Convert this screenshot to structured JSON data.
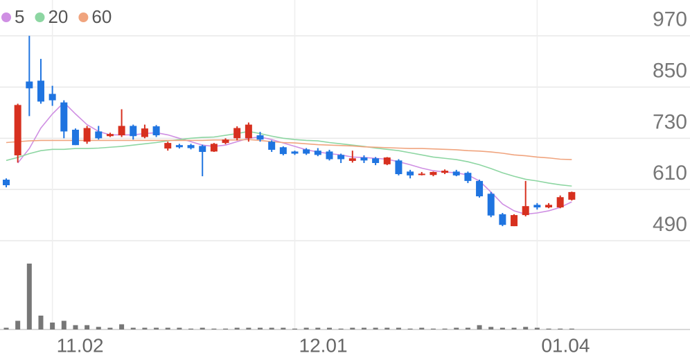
{
  "chart_data": {
    "type": "candlestick",
    "categories": [
      null,
      null,
      null,
      null,
      "11.02",
      null,
      null,
      null,
      null,
      null,
      null,
      null,
      null,
      null,
      null,
      null,
      null,
      null,
      null,
      null,
      null,
      null,
      null,
      null,
      null,
      "12.01",
      null,
      null,
      null,
      null,
      null,
      null,
      null,
      null,
      null,
      null,
      null,
      null,
      null,
      null,
      null,
      null,
      null,
      null,
      null,
      null,
      "01.04",
      null,
      null,
      null
    ],
    "open": [
      633,
      690,
      863,
      865,
      834,
      814,
      750,
      722,
      746,
      735,
      737,
      759,
      733,
      758,
      706,
      714,
      714,
      712,
      699,
      719,
      730,
      730,
      737,
      722,
      709,
      699,
      704,
      701,
      699,
      691,
      677,
      685,
      683,
      669,
      678,
      652,
      644,
      644,
      649,
      652,
      649,
      630,
      600,
      552,
      524,
      550,
      574,
      568,
      568,
      586
    ],
    "high": [
      636,
      811,
      970,
      916,
      853,
      819,
      753,
      759,
      759,
      743,
      798,
      762,
      762,
      761,
      722,
      717,
      717,
      715,
      719,
      730,
      758,
      767,
      745,
      725,
      711,
      701,
      707,
      707,
      703,
      694,
      701,
      690,
      686,
      686,
      681,
      656,
      651,
      652,
      657,
      656,
      652,
      633,
      604,
      555,
      552,
      630,
      578,
      578,
      596,
      605
    ],
    "low": [
      615,
      673,
      782,
      811,
      806,
      730,
      714,
      717,
      727,
      733,
      733,
      727,
      730,
      733,
      701,
      706,
      704,
      641,
      698,
      716,
      725,
      722,
      722,
      698,
      690,
      691,
      691,
      688,
      678,
      672,
      673,
      672,
      667,
      667,
      643,
      636,
      643,
      641,
      646,
      641,
      625,
      591,
      545,
      524,
      524,
      547,
      563,
      566,
      566,
      584
    ],
    "close": [
      620,
      808,
      847,
      816,
      819,
      746,
      714,
      754,
      730,
      740,
      759,
      735,
      753,
      737,
      719,
      709,
      707,
      698,
      717,
      727,
      754,
      762,
      727,
      703,
      693,
      694,
      694,
      691,
      681,
      681,
      683,
      678,
      672,
      685,
      646,
      643,
      647,
      651,
      654,
      643,
      630,
      594,
      549,
      527,
      550,
      571,
      568,
      574,
      592,
      604
    ],
    "up_color": "#d7301f",
    "down_color": "#1f74e0",
    "ylim": [
      490,
      1054
    ],
    "yticks": [
      970,
      850,
      730,
      610,
      490
    ],
    "grid": true,
    "series": [
      {
        "name": "5",
        "color": "#cf8fe3",
        "values": [
          null,
          672,
          706,
          754,
          787,
          814,
          787,
          762,
          746,
          738,
          738,
          738,
          741,
          743,
          738,
          730,
          722,
          714,
          711,
          714,
          722,
          730,
          733,
          727,
          719,
          711,
          703,
          698,
          694,
          691,
          686,
          685,
          683,
          681,
          675,
          668,
          660,
          654,
          651,
          649,
          644,
          630,
          604,
          576,
          560,
          552,
          555,
          560,
          568,
          581
        ]
      },
      {
        "name": "20",
        "color": "#8dd6a2",
        "values": [
          678,
          685,
          694,
          701,
          704,
          704,
          706,
          706,
          707,
          709,
          711,
          714,
          717,
          720,
          724,
          727,
          730,
          732,
          733,
          737,
          741,
          746,
          741,
          735,
          730,
          727,
          725,
          724,
          720,
          717,
          714,
          711,
          707,
          704,
          701,
          696,
          691,
          686,
          683,
          680,
          675,
          668,
          659,
          649,
          641,
          634,
          630,
          625,
          621,
          618
        ]
      },
      {
        "name": "60",
        "color": "#f0a47e",
        "values": [
          720,
          722,
          724,
          725,
          725,
          725,
          725,
          725,
          725,
          725,
          725,
          725,
          725,
          725,
          725,
          725,
          725,
          725,
          726,
          726,
          726,
          727,
          725,
          722,
          720,
          719,
          717,
          715,
          714,
          713,
          712,
          710,
          709,
          708,
          707,
          706,
          706,
          705,
          704,
          703,
          701,
          700,
          698,
          695,
          691,
          689,
          686,
          684,
          681,
          680
        ]
      }
    ],
    "volume": {
      "color": "#777777",
      "ylim": [
        0,
        100
      ],
      "values": [
        2,
        10,
        76,
        16,
        8,
        10,
        5,
        5,
        3,
        2,
        6,
        2,
        2,
        2,
        2,
        2,
        1,
        2,
        1,
        1,
        2,
        2,
        2,
        2,
        2,
        1,
        2,
        2,
        2,
        1,
        2,
        2,
        2,
        2,
        2,
        1,
        2,
        1,
        1,
        2,
        2,
        5,
        3,
        2,
        2,
        3,
        2,
        1,
        1,
        1
      ]
    }
  }
}
